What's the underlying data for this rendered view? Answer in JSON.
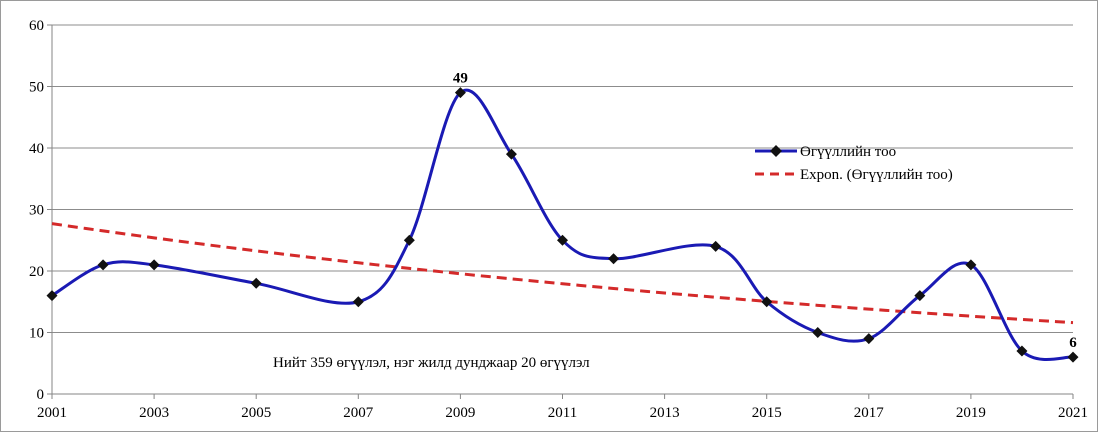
{
  "chart_data": {
    "type": "line",
    "x": [
      2001,
      2002,
      2003,
      2004,
      2005,
      2006,
      2007,
      2008,
      2009,
      2010,
      2011,
      2012,
      2013,
      2014,
      2015,
      2016,
      2017,
      2018,
      2019,
      2020,
      2021
    ],
    "series": [
      {
        "name": "Өгүүллийн тоо",
        "values": [
          16,
          21,
          21,
          null,
          18,
          null,
          15,
          25,
          49,
          39,
          25,
          22,
          null,
          24,
          15,
          10,
          9,
          16,
          21,
          7,
          6
        ],
        "color": "#1a1ab4",
        "marker": "diamond",
        "style": "smooth"
      },
      {
        "name": "Expon. (Өгүүллийн тоо)",
        "trend": {
          "start": 27.7,
          "end": 11.6
        },
        "color": "#d42a2a",
        "style": "dashed"
      }
    ],
    "data_labels": [
      {
        "x": 2009,
        "text": "49"
      },
      {
        "x": 2021,
        "text": "6"
      }
    ],
    "annotation": "Нийт 359 өгүүлэл, нэг жилд дунджаар 20 өгүүлэл",
    "x_ticks": [
      "2001",
      "2003",
      "2005",
      "2007",
      "2009",
      "2011",
      "2013",
      "2015",
      "2017",
      "2019",
      "2021"
    ],
    "y_ticks": [
      "0",
      "10",
      "20",
      "30",
      "40",
      "50",
      "60"
    ],
    "xlim": [
      2001,
      2021
    ],
    "ylim": [
      0,
      60
    ],
    "grid": "horizontal",
    "legend_position": "right",
    "title": "",
    "xlabel": "",
    "ylabel": ""
  }
}
